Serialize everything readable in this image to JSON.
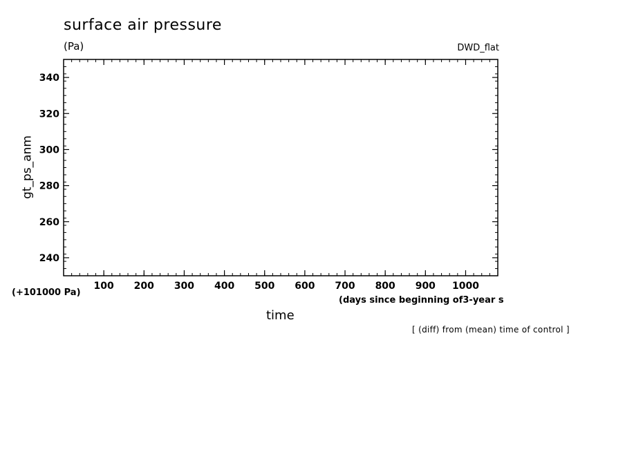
{
  "chart_data": {
    "type": "line",
    "title": "surface air pressure",
    "unit": "(Pa)",
    "model": "DWD_flat",
    "ylabel": "gt_ps_anm",
    "xlabel": "time",
    "x_unit": "(days since beginning of3-year s",
    "y_offset_label": "(+101000 Pa)",
    "footnote": "[ (diff) from (mean) time of control ]",
    "xlim": [
      0,
      1080
    ],
    "ylim": [
      230,
      350
    ],
    "x_ticks": [
      100,
      200,
      300,
      400,
      500,
      600,
      700,
      800,
      900,
      1000
    ],
    "y_ticks": [
      240,
      260,
      280,
      300,
      320,
      340
    ],
    "x_minor_step": 20,
    "y_minor_step": 4,
    "grid": false,
    "series": []
  }
}
